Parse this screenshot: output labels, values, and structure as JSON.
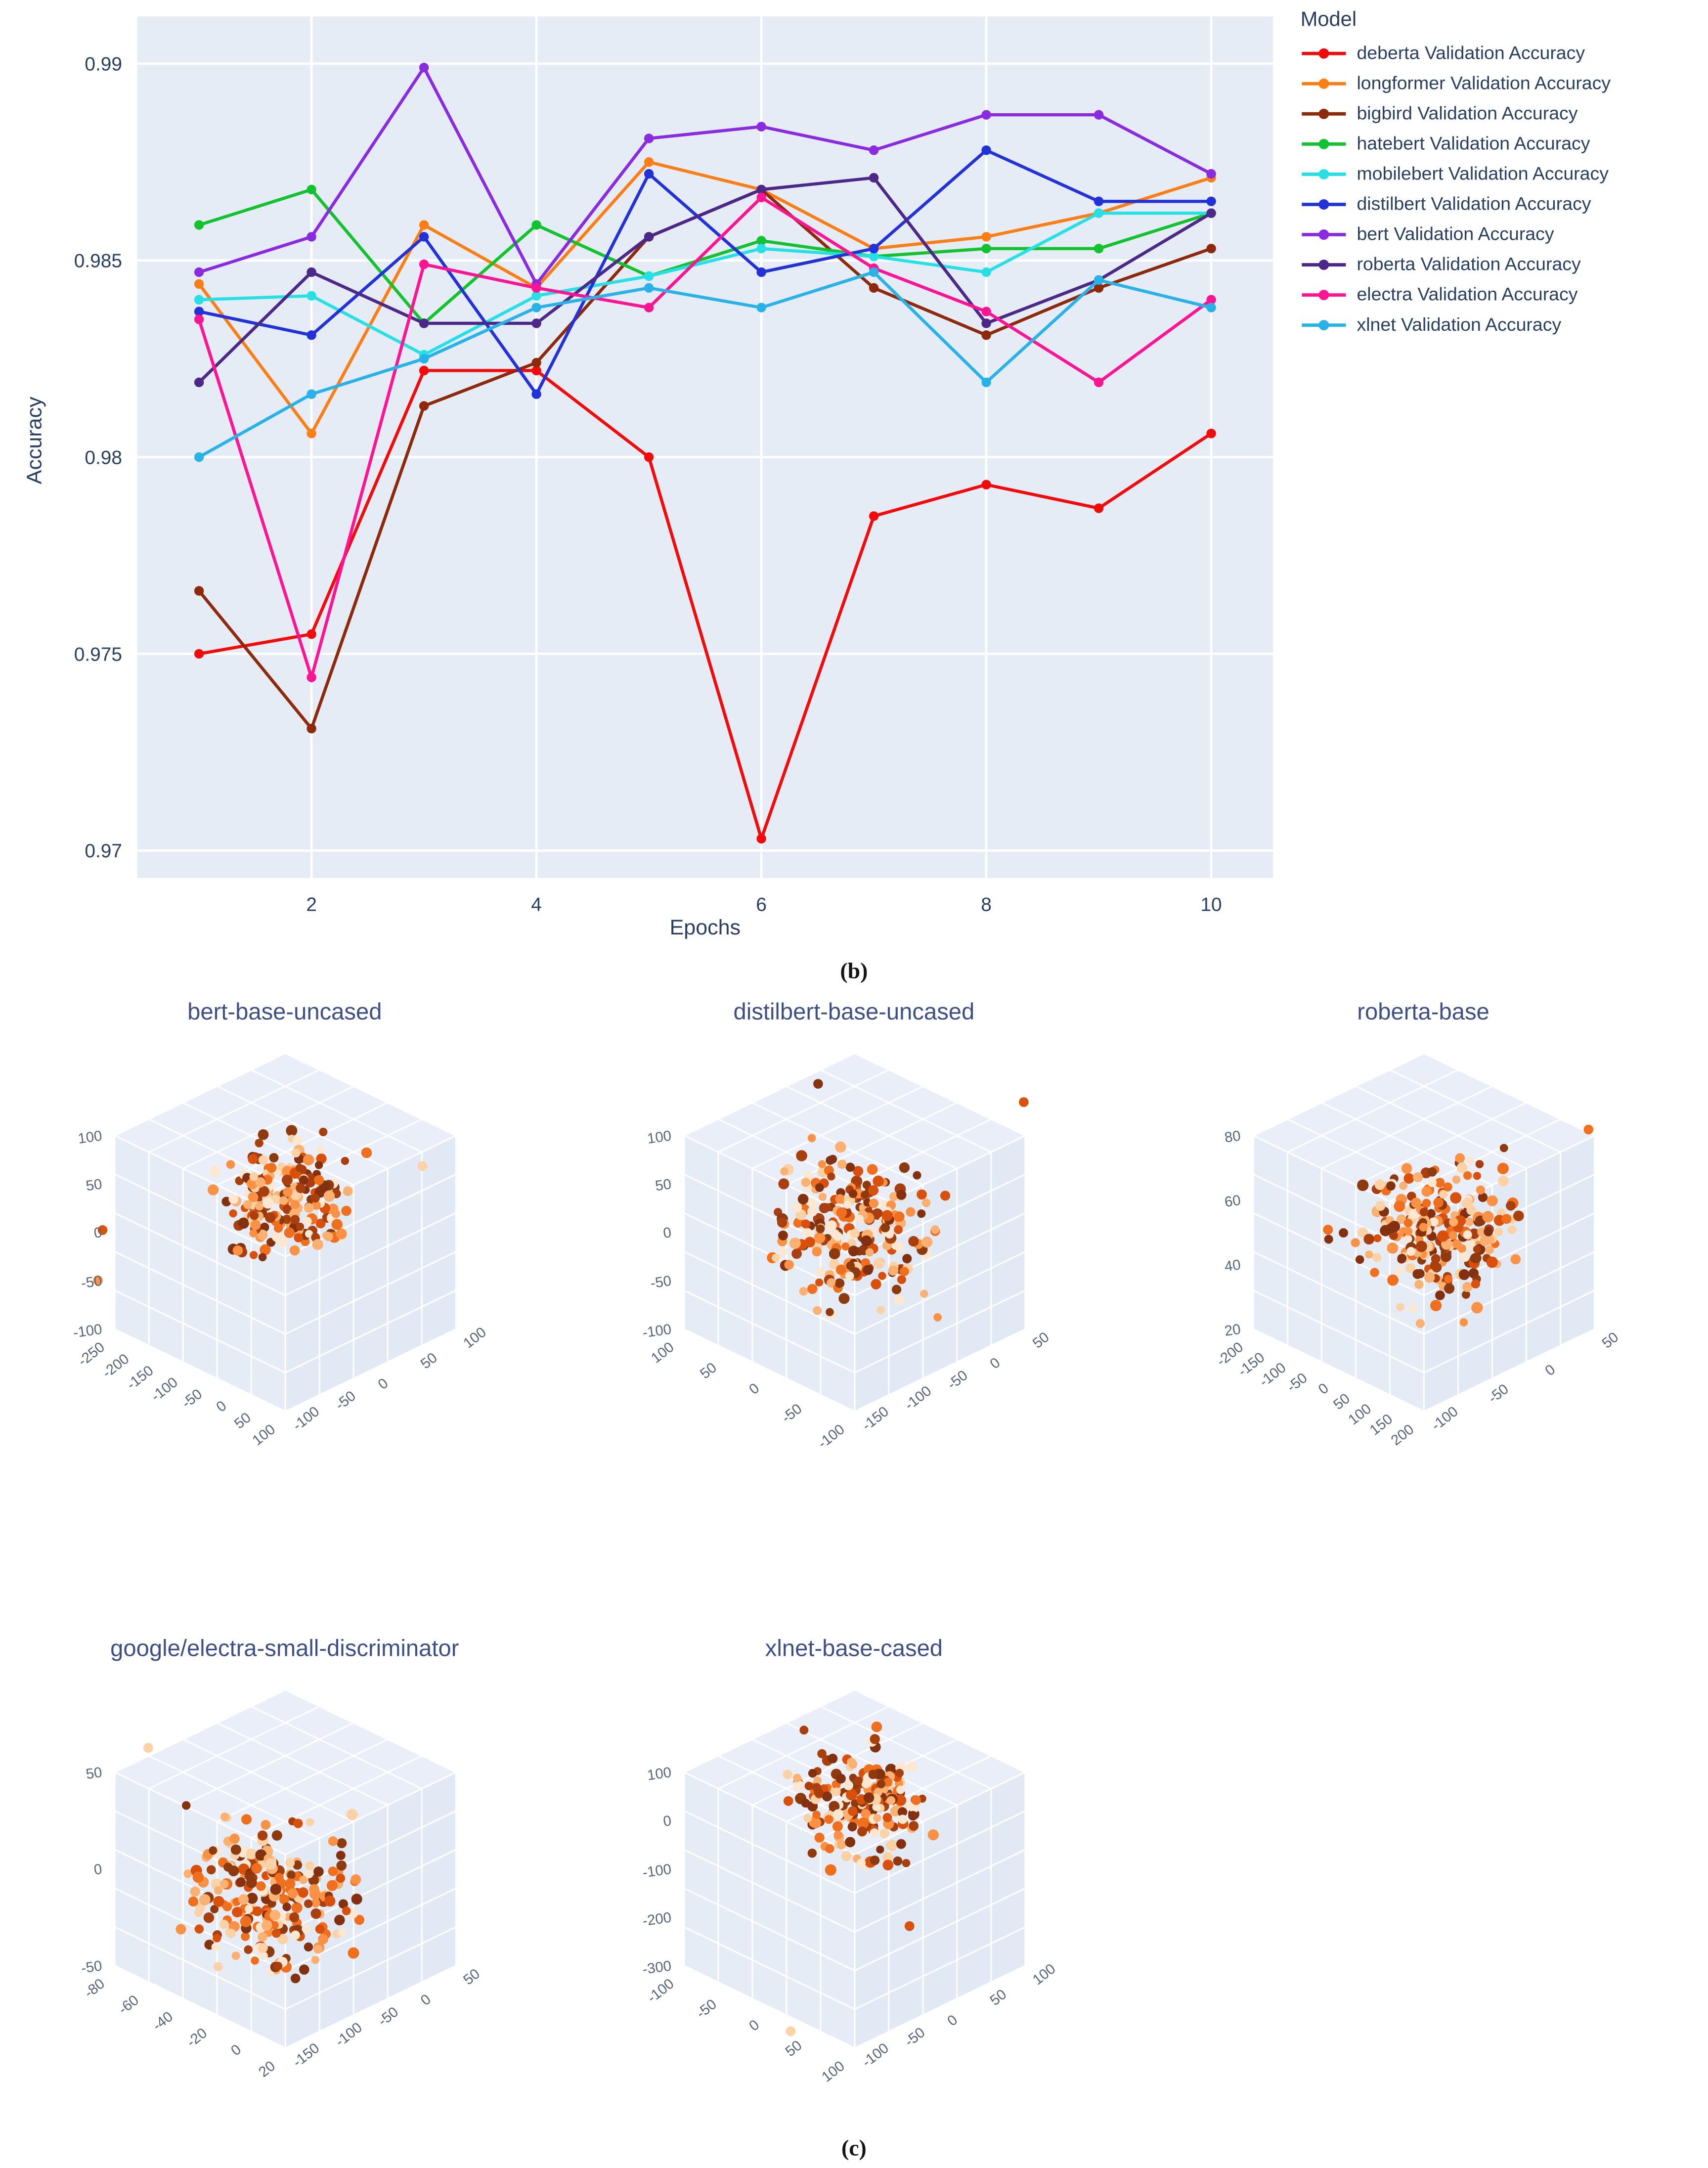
{
  "figure": {
    "panel_b_label": "(b)",
    "panel_c_label": "(c)",
    "colors": {
      "plot_bg": "#e5ecf6",
      "grid": "#ffffff",
      "axis_text": "#2a3f5f",
      "panel_title": "#3e4f85",
      "tick3d_text": "#596579"
    },
    "dot_palette": [
      "#fee7d1",
      "#fdd0a2",
      "#fdae6b",
      "#fd8d3c",
      "#f16913",
      "#d94801",
      "#a63603",
      "#8a3103",
      "#7f2704"
    ]
  },
  "chart_data": [
    {
      "type": "line",
      "title": "",
      "xlabel": "Epochs",
      "ylabel": "Accuracy",
      "legend_title": "Model",
      "x": [
        1,
        2,
        3,
        4,
        5,
        6,
        7,
        8,
        9,
        10
      ],
      "xticks": [
        "2",
        "4",
        "6",
        "8",
        "10"
      ],
      "xtick_values": [
        2,
        4,
        6,
        8,
        10
      ],
      "yticks": [
        "0.97",
        "0.975",
        "0.98",
        "0.985",
        "0.99"
      ],
      "ytick_values": [
        0.97,
        0.975,
        0.98,
        0.985,
        0.99
      ],
      "xlim": [
        0.45,
        10.55
      ],
      "ylim": [
        0.9693,
        0.9912
      ],
      "grid": true,
      "legend_position": "right",
      "series": [
        {
          "name": "deberta Validation Accuracy",
          "color": "#f30b0b",
          "values": [
            0.975,
            0.9755,
            0.9822,
            0.9822,
            0.98,
            0.9703,
            0.9785,
            0.9793,
            0.9787,
            0.9806
          ]
        },
        {
          "name": "longformer Validation Accuracy",
          "color": "#fc7e15",
          "values": [
            0.9844,
            0.9806,
            0.9859,
            0.9843,
            0.9875,
            0.9868,
            0.9853,
            0.9856,
            0.9862,
            0.9871
          ]
        },
        {
          "name": "bigbird Validation Accuracy",
          "color": "#8e2a0b",
          "values": [
            0.9766,
            0.9731,
            0.9813,
            0.9824,
            0.9856,
            0.9868,
            0.9843,
            0.9831,
            0.9843,
            0.9853
          ]
        },
        {
          "name": "hatebert Validation Accuracy",
          "color": "#13c22f",
          "values": [
            0.9859,
            0.9868,
            0.9834,
            0.9859,
            0.9846,
            0.9855,
            0.9851,
            0.9853,
            0.9853,
            0.9862
          ]
        },
        {
          "name": "mobilebert Validation Accuracy",
          "color": "#27e0e6",
          "values": [
            0.984,
            0.9841,
            0.9826,
            0.9841,
            0.9846,
            0.9853,
            0.9851,
            0.9847,
            0.9862,
            0.9862
          ]
        },
        {
          "name": "distilbert Validation Accuracy",
          "color": "#2331d8",
          "values": [
            0.9837,
            0.9831,
            0.9856,
            0.9816,
            0.9872,
            0.9847,
            0.9853,
            0.9878,
            0.9865,
            0.9865
          ]
        },
        {
          "name": "bert Validation Accuracy",
          "color": "#8a2be2",
          "values": [
            0.9847,
            0.9856,
            0.9899,
            0.9844,
            0.9881,
            0.9884,
            0.9878,
            0.9887,
            0.9887,
            0.9872
          ]
        },
        {
          "name": "roberta Validation Accuracy",
          "color": "#4c2889",
          "values": [
            0.9819,
            0.9847,
            0.9834,
            0.9834,
            0.9856,
            0.9868,
            0.9871,
            0.9834,
            0.9845,
            0.9862
          ]
        },
        {
          "name": "electra Validation Accuracy",
          "color": "#ff1493",
          "values": [
            0.9835,
            0.9744,
            0.9849,
            0.9843,
            0.9838,
            0.9866,
            0.9848,
            0.9837,
            0.9819,
            0.984
          ]
        },
        {
          "name": "xlnet Validation Accuracy",
          "color": "#29b2e8",
          "values": [
            0.98,
            0.9816,
            0.9825,
            0.9838,
            0.9843,
            0.9838,
            0.9847,
            0.9819,
            0.9845,
            0.9838
          ]
        }
      ]
    },
    {
      "type": "scatter3d",
      "title": "bert-base-uncased",
      "seed": 7,
      "points": 205,
      "cluster": {
        "cx": 0.5,
        "cy": 0.37,
        "r": 0.2
      },
      "outliers": [
        [
          0.8,
          0.3
        ],
        [
          0.1,
          0.44
        ],
        [
          0.09,
          0.55
        ]
      ],
      "ticks_z": [
        "100",
        "50",
        "0",
        "-50",
        "-100"
      ],
      "ticks_x": [
        "-250",
        "-200",
        "-150",
        "-100",
        "-50",
        "0",
        "50",
        "100"
      ],
      "ticks_y": [
        "-100",
        "-50",
        "0",
        "50",
        "100"
      ]
    },
    {
      "type": "scatter3d",
      "title": "distilbert-base-uncased",
      "seed": 13,
      "points": 225,
      "cluster": {
        "cx": 0.49,
        "cy": 0.45,
        "r": 0.25
      },
      "outliers": [
        [
          0.87,
          0.16
        ],
        [
          0.42,
          0.12
        ]
      ],
      "ticks_z": [
        "100",
        "50",
        "0",
        "-50",
        "-100"
      ],
      "ticks_x": [
        "100",
        "50",
        "0",
        "-50",
        "-100"
      ],
      "ticks_y": [
        "-150",
        "-100",
        "-50",
        "0",
        "50"
      ]
    },
    {
      "type": "scatter3d",
      "title": "roberta-base",
      "seed": 21,
      "points": 235,
      "cluster": {
        "cx": 0.52,
        "cy": 0.45,
        "r": 0.26
      },
      "outliers": [
        [
          0.86,
          0.22
        ]
      ],
      "ticks_z": [
        "80",
        "60",
        "40",
        "20"
      ],
      "ticks_x": [
        "-200",
        "-150",
        "-100",
        "-50",
        "0",
        "50",
        "100",
        "150",
        "200"
      ],
      "ticks_y": [
        "-100",
        "-50",
        "0",
        "50"
      ]
    },
    {
      "type": "scatter3d",
      "title": "google/electra-small-discriminator",
      "seed": 29,
      "points": 235,
      "cluster": {
        "cx": 0.47,
        "cy": 0.5,
        "r": 0.26
      },
      "outliers": [
        [
          0.2,
          0.18
        ]
      ],
      "ticks_z": [
        "50",
        "0",
        "-50"
      ],
      "ticks_x": [
        "-80",
        "-60",
        "-40",
        "-20",
        "0",
        "20"
      ],
      "ticks_y": [
        "-150",
        "-100",
        "-50",
        "0",
        "50"
      ]
    },
    {
      "type": "scatter3d",
      "title": "xlnet-base-cased",
      "seed": 35,
      "points": 205,
      "cluster": {
        "cx": 0.51,
        "cy": 0.3,
        "r": 0.2
      },
      "outliers": [
        [
          0.62,
          0.57
        ],
        [
          0.36,
          0.8
        ]
      ],
      "ticks_z": [
        "100",
        "0",
        "-100",
        "-200",
        "-300"
      ],
      "ticks_x": [
        "-100",
        "-50",
        "0",
        "50",
        "100"
      ],
      "ticks_y": [
        "-100",
        "-50",
        "0",
        "50",
        "100"
      ]
    }
  ]
}
